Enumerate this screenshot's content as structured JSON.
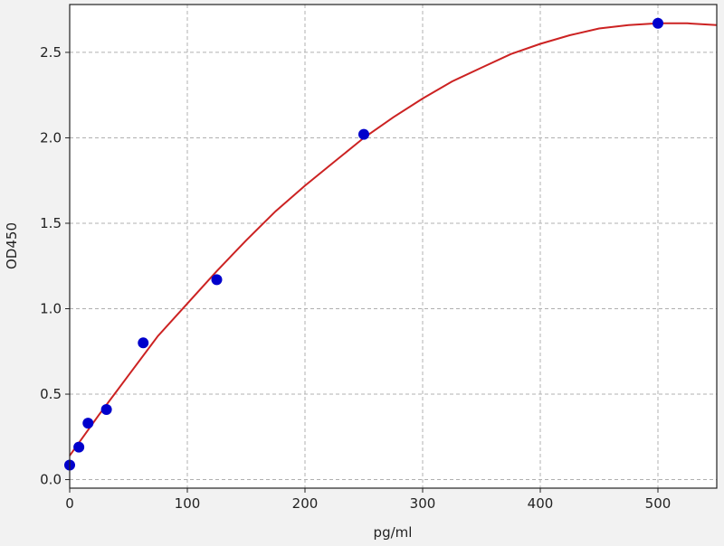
{
  "chart_data": {
    "type": "scatter",
    "title": "",
    "xlabel": "pg/ml",
    "ylabel": "OD450",
    "xlim": [
      0,
      550
    ],
    "ylim": [
      -0.05,
      2.78
    ],
    "xticks": [
      0,
      100,
      200,
      300,
      400,
      500
    ],
    "xtick_labels": [
      "0",
      "100",
      "200",
      "300",
      "400",
      "500"
    ],
    "yticks": [
      0.0,
      0.5,
      1.0,
      1.5,
      2.0,
      2.5
    ],
    "ytick_labels": [
      "0.0",
      "0.5",
      "1.0",
      "1.5",
      "2.0",
      "2.5"
    ],
    "grid": true,
    "points": {
      "x": [
        0,
        7.8,
        15.6,
        31.25,
        62.5,
        125,
        250,
        500
      ],
      "y": [
        0.085,
        0.19,
        0.33,
        0.41,
        0.8,
        1.17,
        2.02,
        2.67
      ],
      "color": "#0000cc"
    },
    "fit_curve": {
      "type": "line",
      "color": "#cc2222",
      "x": [
        0,
        25,
        50,
        75,
        100,
        125,
        150,
        175,
        200,
        225,
        250,
        275,
        300,
        325,
        350,
        375,
        400,
        425,
        450,
        475,
        500,
        525,
        550
      ],
      "y": [
        0.14,
        0.38,
        0.61,
        0.84,
        1.03,
        1.22,
        1.4,
        1.57,
        1.72,
        1.86,
        2.0,
        2.12,
        2.23,
        2.33,
        2.41,
        2.49,
        2.55,
        2.6,
        2.64,
        2.66,
        2.67,
        2.67,
        2.66
      ]
    }
  }
}
